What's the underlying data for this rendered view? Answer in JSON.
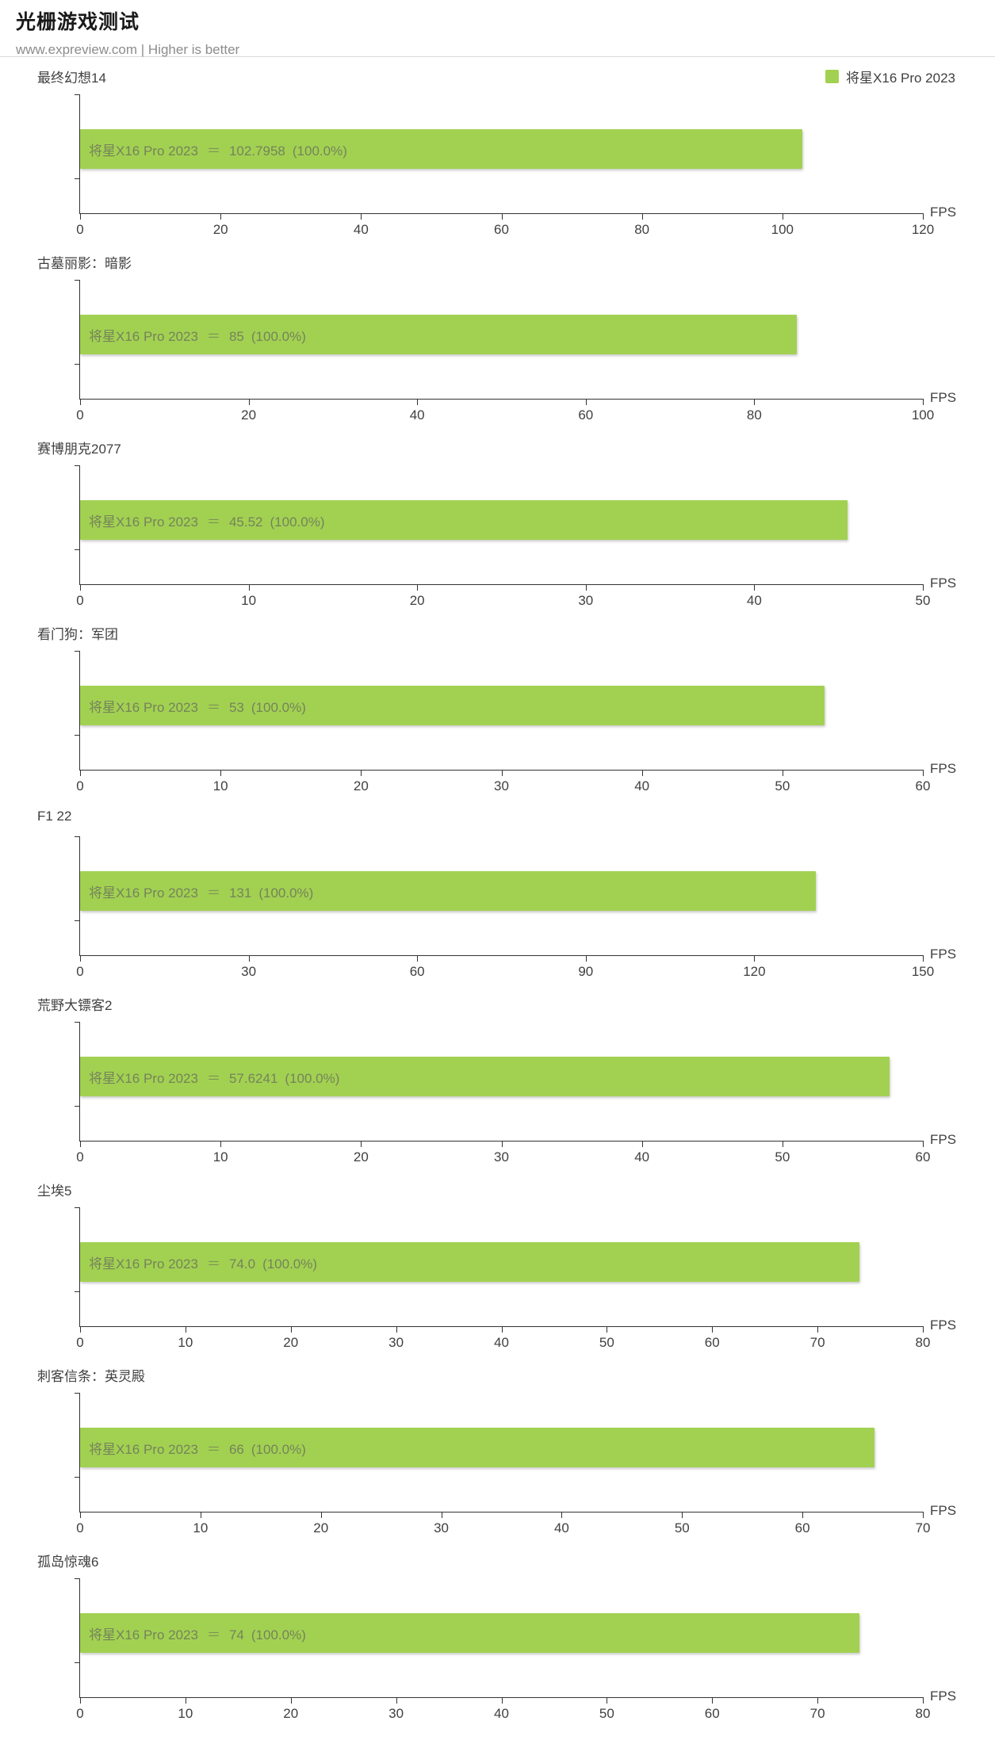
{
  "header": {
    "title": "光栅游戏测试",
    "subtitle": "www.expreview.com | Higher is better"
  },
  "legend": {
    "label": "将星X16 Pro 2023"
  },
  "series_name": "将星X16 Pro 2023",
  "separator": "＝",
  "fps_unit": "FPS",
  "colors": {
    "bar": "#a2d152",
    "bar_label": "#75835a",
    "axis": "#333333",
    "text": "#404040"
  },
  "chart_data": [
    {
      "type": "bar",
      "title": "最终幻想14",
      "series": "将星X16 Pro 2023",
      "value": 102.7958,
      "value_label": "102.7958",
      "percent_label": "(100.0%)",
      "xlim": [
        0,
        120
      ],
      "ticks": [
        0,
        20,
        40,
        60,
        80,
        100,
        120
      ],
      "xlabel": "FPS"
    },
    {
      "type": "bar",
      "title": "古墓丽影：暗影",
      "series": "将星X16 Pro 2023",
      "value": 85,
      "value_label": "85",
      "percent_label": "(100.0%)",
      "xlim": [
        0,
        100
      ],
      "ticks": [
        0,
        20,
        40,
        60,
        80,
        100
      ],
      "xlabel": "FPS"
    },
    {
      "type": "bar",
      "title": "赛博朋克2077",
      "series": "将星X16 Pro 2023",
      "value": 45.52,
      "value_label": "45.52",
      "percent_label": "(100.0%)",
      "xlim": [
        0,
        50
      ],
      "ticks": [
        0,
        10,
        20,
        30,
        40,
        50
      ],
      "xlabel": "FPS"
    },
    {
      "type": "bar",
      "title": "看门狗：军团",
      "series": "将星X16 Pro 2023",
      "value": 53,
      "value_label": "53",
      "percent_label": "(100.0%)",
      "xlim": [
        0,
        60
      ],
      "ticks": [
        0,
        10,
        20,
        30,
        40,
        50,
        60
      ],
      "xlabel": "FPS"
    },
    {
      "type": "bar",
      "title": "F1 22",
      "series": "将星X16 Pro 2023",
      "value": 131,
      "value_label": "131",
      "percent_label": "(100.0%)",
      "xlim": [
        0,
        150
      ],
      "ticks": [
        0,
        30,
        60,
        90,
        120,
        150
      ],
      "xlabel": "FPS"
    },
    {
      "type": "bar",
      "title": "荒野大镖客2",
      "series": "将星X16 Pro 2023",
      "value": 57.6241,
      "value_label": "57.6241",
      "percent_label": "(100.0%)",
      "xlim": [
        0,
        60
      ],
      "ticks": [
        0,
        10,
        20,
        30,
        40,
        50,
        60
      ],
      "xlabel": "FPS"
    },
    {
      "type": "bar",
      "title": "尘埃5",
      "series": "将星X16 Pro 2023",
      "value": 74.0,
      "value_label": "74.0",
      "percent_label": "(100.0%)",
      "xlim": [
        0,
        80
      ],
      "ticks": [
        0,
        10,
        20,
        30,
        40,
        50,
        60,
        70,
        80
      ],
      "xlabel": "FPS"
    },
    {
      "type": "bar",
      "title": "刺客信条：英灵殿",
      "series": "将星X16 Pro 2023",
      "value": 66,
      "value_label": "66",
      "percent_label": "(100.0%)",
      "xlim": [
        0,
        70
      ],
      "ticks": [
        0,
        10,
        20,
        30,
        40,
        50,
        60,
        70
      ],
      "xlabel": "FPS"
    },
    {
      "type": "bar",
      "title": "孤岛惊魂6",
      "series": "将星X16 Pro 2023",
      "value": 74,
      "value_label": "74",
      "percent_label": "(100.0%)",
      "xlim": [
        0,
        80
      ],
      "ticks": [
        0,
        10,
        20,
        30,
        40,
        50,
        60,
        70,
        80
      ],
      "xlabel": "FPS"
    }
  ]
}
